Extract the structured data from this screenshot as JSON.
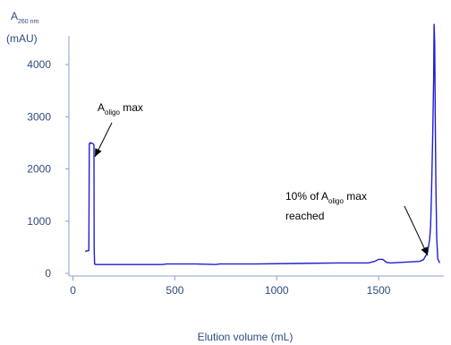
{
  "colors": {
    "line": "#1f1fd0",
    "axis": "#8aa0c8",
    "text": "#2e4a7d",
    "annotation": "#000000"
  },
  "chart_data": {
    "type": "line",
    "title": "",
    "xlabel": "Elution volume (mL)",
    "ylabel_main": "A",
    "ylabel_sub": "260 nm",
    "ylabel_unit": "(mAU)",
    "xlim": [
      -20,
      1820
    ],
    "ylim": [
      -50,
      4550
    ],
    "xticks": [
      0,
      500,
      1000,
      1500
    ],
    "yticks": [
      0,
      1000,
      2000,
      3000,
      4000
    ],
    "grid": false,
    "x": [
      60,
      65,
      70,
      78,
      80,
      84,
      86,
      90,
      95,
      100,
      103,
      104,
      106,
      110,
      150,
      300,
      440,
      460,
      520,
      600,
      700,
      720,
      900,
      1100,
      1300,
      1450,
      1480,
      1500,
      1520,
      1540,
      1560,
      1600,
      1650,
      1700,
      1720,
      1740,
      1750,
      1755,
      1760,
      1765,
      1770,
      1772,
      1775,
      1778,
      1781,
      1785,
      1790,
      1800
    ],
    "y": [
      420,
      430,
      430,
      440,
      2480,
      2500,
      2490,
      2500,
      2490,
      2480,
      2460,
      500,
      180,
      170,
      170,
      170,
      170,
      180,
      180,
      180,
      170,
      180,
      180,
      190,
      200,
      200,
      230,
      270,
      270,
      210,
      200,
      210,
      220,
      230,
      260,
      400,
      650,
      900,
      1600,
      2600,
      3700,
      4780,
      4400,
      3000,
      1700,
      700,
      280,
      200
    ],
    "annotations": [
      {
        "id": "aoligo-max",
        "main": "A",
        "sub": "oligo",
        "after": " max",
        "x": 95,
        "y": 2500
      },
      {
        "id": "ten-percent",
        "line1_before": "10% of A",
        "line1_sub": "oligo",
        "line1_after": " max",
        "line2": "reached",
        "x": 1765,
        "y": 700
      }
    ]
  }
}
